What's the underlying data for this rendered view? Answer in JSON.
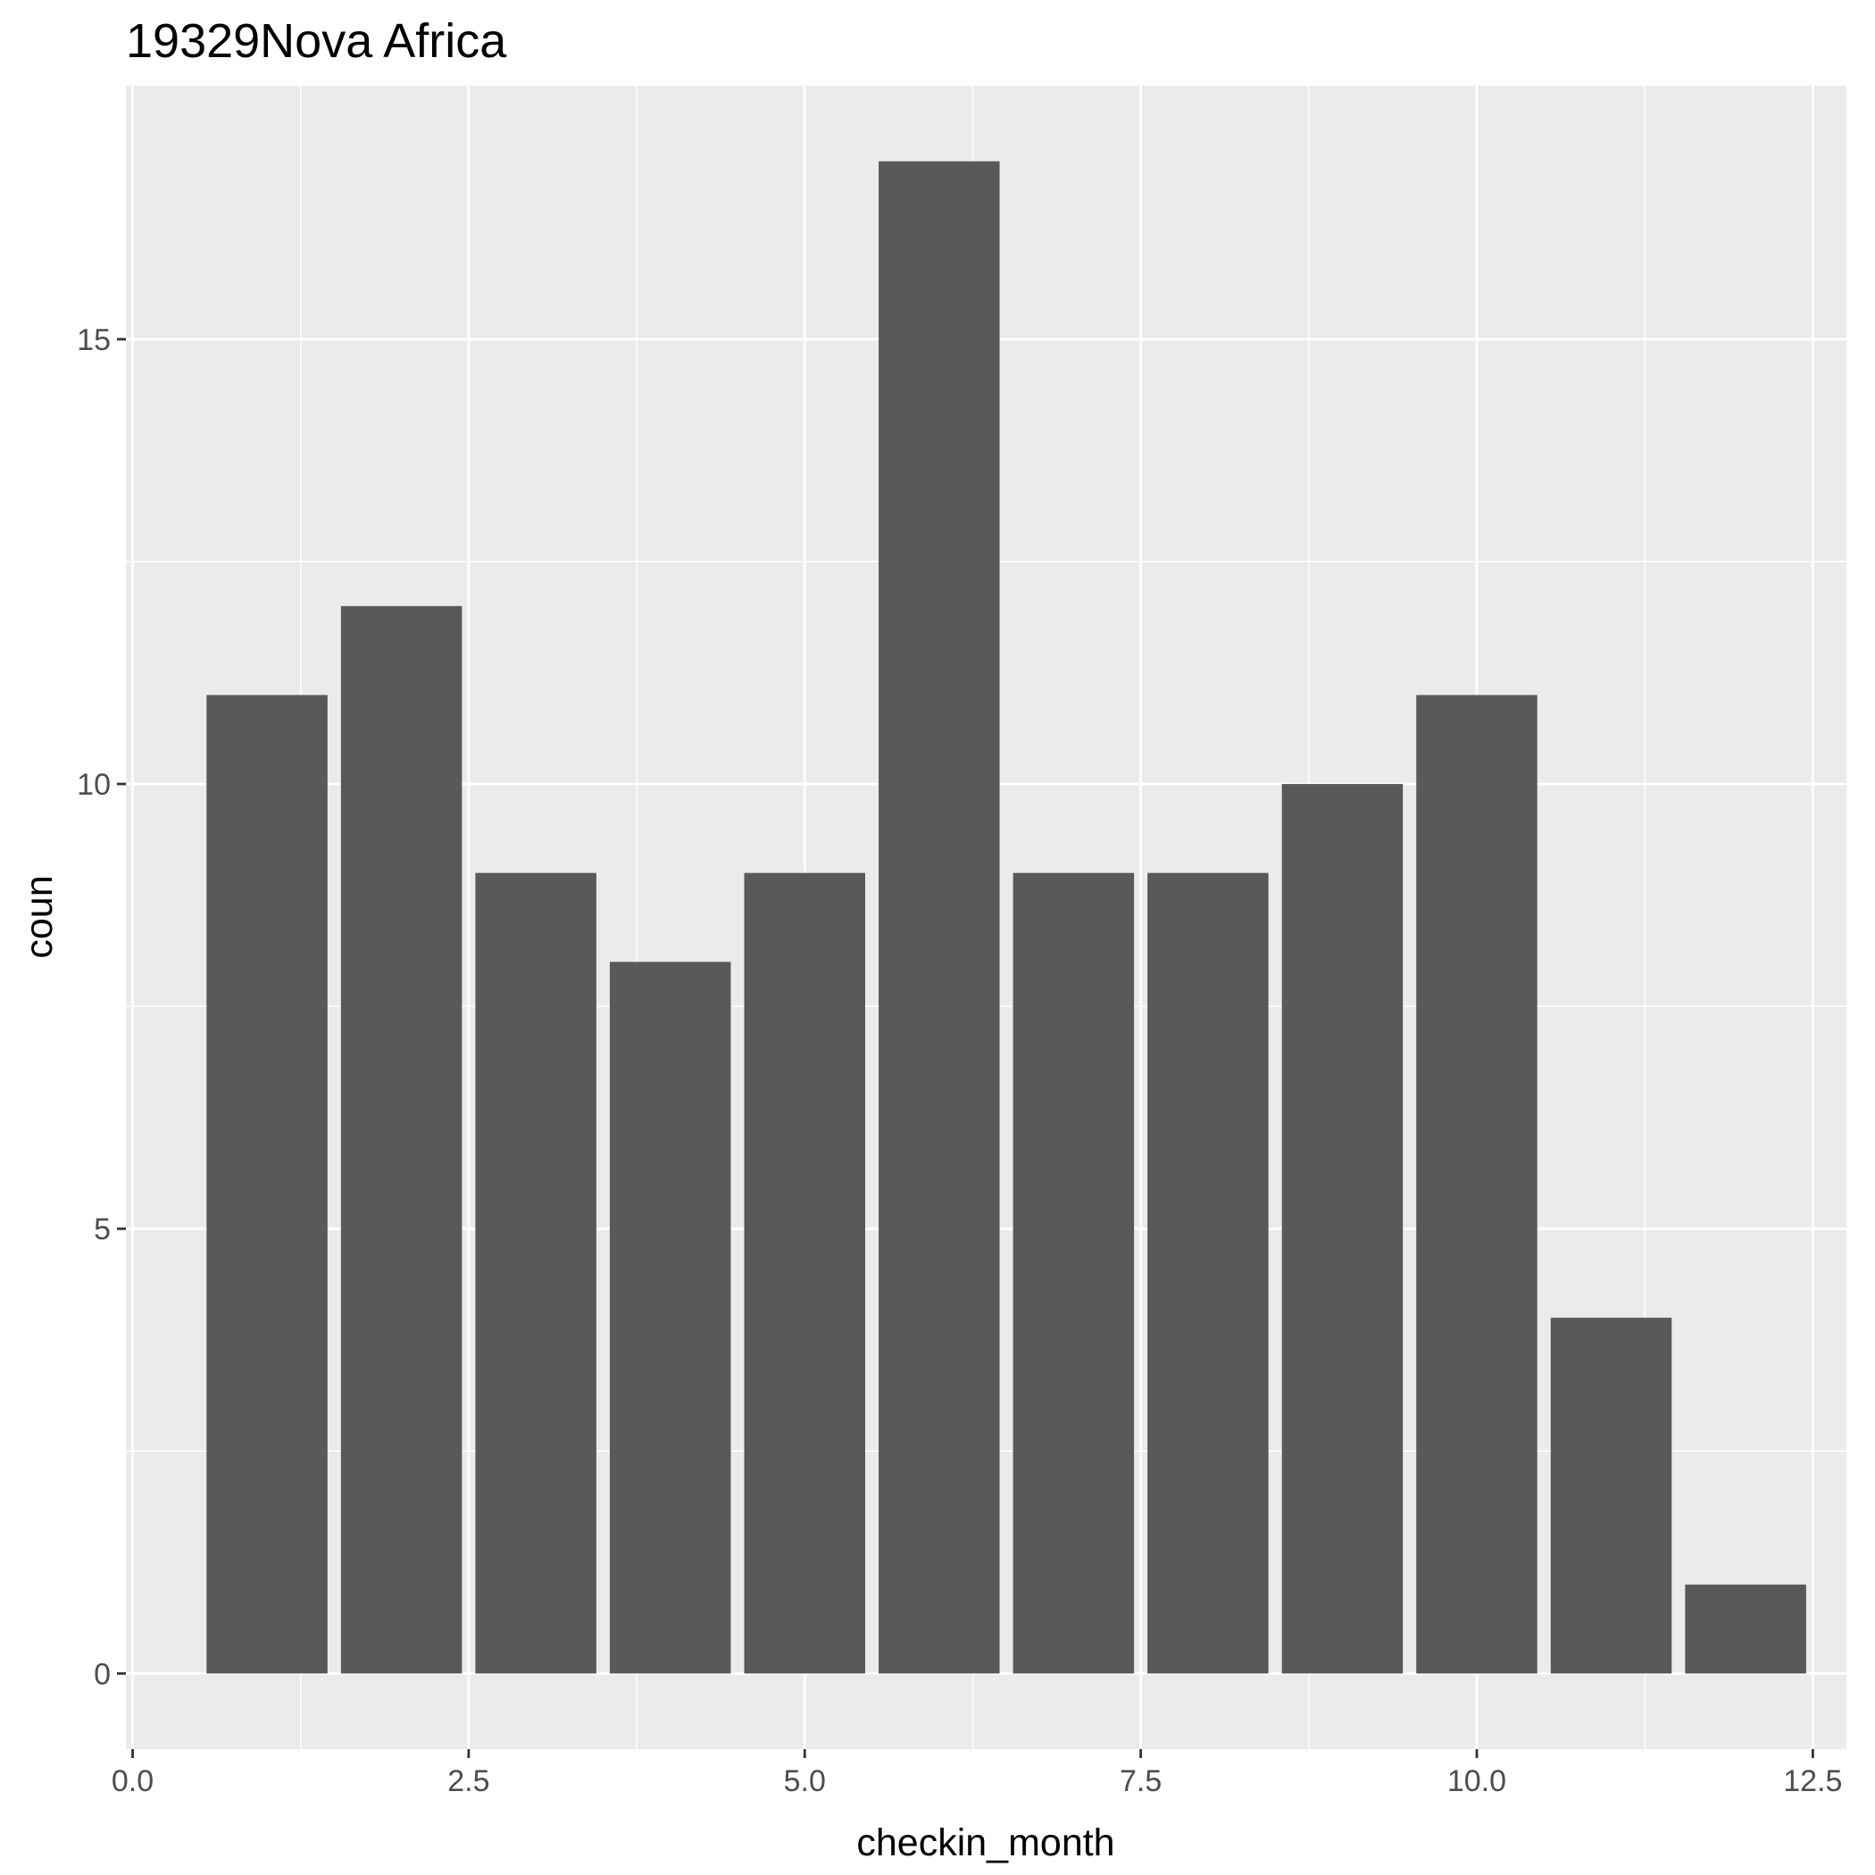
{
  "chart_data": {
    "type": "bar",
    "title": "19329Nova Africa",
    "xlabel": "checkin_month",
    "ylabel": "coun",
    "x": [
      1,
      2,
      3,
      4,
      5,
      6,
      7,
      8,
      9,
      10,
      11,
      12
    ],
    "values": [
      11,
      12,
      9,
      8,
      9,
      17,
      9,
      9,
      10,
      11,
      4,
      1
    ],
    "xlim": [
      -0.05,
      12.75
    ],
    "ylim": [
      -0.85,
      17.85
    ],
    "x_ticks": [
      {
        "value": 0,
        "label": "0.0"
      },
      {
        "value": 2.5,
        "label": "2.5"
      },
      {
        "value": 5,
        "label": "5.0"
      },
      {
        "value": 7.5,
        "label": "7.5"
      },
      {
        "value": 10,
        "label": "10.0"
      },
      {
        "value": 12.5,
        "label": "12.5"
      }
    ],
    "y_ticks": [
      {
        "value": 0,
        "label": "0"
      },
      {
        "value": 5,
        "label": "5"
      },
      {
        "value": 10,
        "label": "10"
      },
      {
        "value": 15,
        "label": "15"
      }
    ],
    "grid": true,
    "colors": {
      "panel_background": "#ebebeb",
      "grid_major": "#ffffff",
      "bar_fill": "#595959",
      "tick_text": "#4d4d4d",
      "tick_mark": "#333333"
    }
  }
}
